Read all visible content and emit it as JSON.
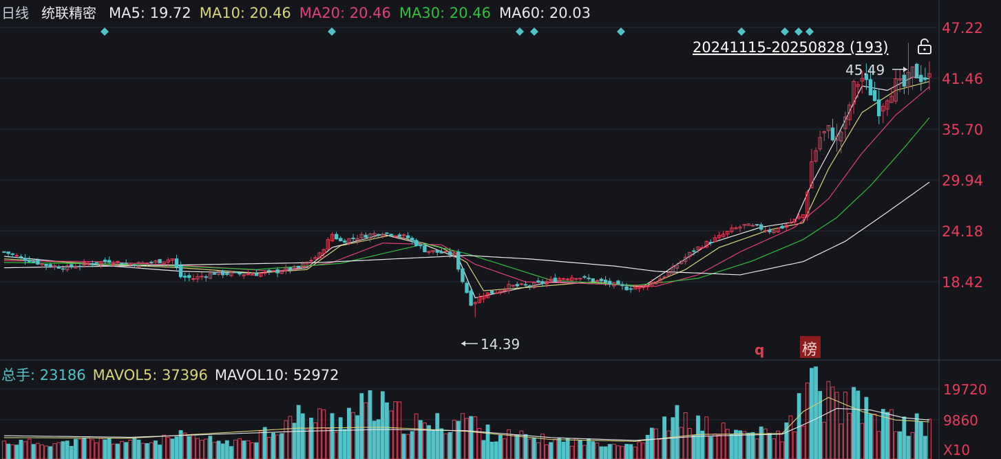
{
  "header": {
    "period": "日线",
    "stock_name": "统联精密",
    "ma": [
      {
        "label": "MA5: 19.72",
        "color": "#e8e8e8"
      },
      {
        "label": "MA10: 20.46",
        "color": "#d8d47a"
      },
      {
        "label": "MA20: 20.46",
        "color": "#e0407a"
      },
      {
        "label": "MA30: 20.46",
        "color": "#2fbf3a"
      },
      {
        "label": "MA60: 20.03",
        "color": "#e8e8e8"
      }
    ]
  },
  "range_label": "20241115-20250828 (193)",
  "volume_header": {
    "items": [
      {
        "label": "总手: 23186",
        "color": "#4fc3c8"
      },
      {
        "label": "MAVOL5: 37396",
        "color": "#d8d47a"
      },
      {
        "label": "MAVOL10: 52972",
        "color": "#e8e8e8"
      }
    ]
  },
  "markers": {
    "q": "q",
    "bang": "榜"
  },
  "colors": {
    "up": "#e0405a",
    "down": "#4fc3c8",
    "background": "#14161c",
    "grid": "#262a33",
    "axis_text": "#e83c5a"
  },
  "chart_data": [
    {
      "type": "candlestick",
      "title": "统联精密 日线",
      "date_range": "20241115-20250828",
      "bar_count": 193,
      "y_ticks": [
        47.22,
        41.46,
        35.7,
        29.94,
        24.18,
        18.42
      ],
      "y_tick_labels": [
        "47.22",
        "41.46",
        "35.70",
        "29.94",
        "24.18",
        "18.42"
      ],
      "ylim": [
        14.0,
        47.22
      ],
      "max_label": "45.49",
      "min_label": "14.39",
      "high": 45.49,
      "low": 14.39,
      "grid": true,
      "close_path": [
        [
          0,
          21.8
        ],
        [
          5,
          21.0
        ],
        [
          10,
          20.3
        ],
        [
          15,
          20.0
        ],
        [
          20,
          20.5
        ],
        [
          25,
          20.8
        ],
        [
          30,
          20.4
        ],
        [
          35,
          20.6
        ],
        [
          40,
          21.0
        ],
        [
          42,
          19.0
        ],
        [
          45,
          18.8
        ],
        [
          50,
          19.4
        ],
        [
          55,
          19.3
        ],
        [
          60,
          19.3
        ],
        [
          65,
          19.6
        ],
        [
          70,
          20.0
        ],
        [
          75,
          21.5
        ],
        [
          78,
          23.8
        ],
        [
          80,
          23.0
        ],
        [
          85,
          23.6
        ],
        [
          90,
          24.0
        ],
        [
          93,
          23.8
        ],
        [
          96,
          23.4
        ],
        [
          100,
          22.0
        ],
        [
          104,
          21.7
        ],
        [
          107,
          21.5
        ],
        [
          109,
          18.5
        ],
        [
          111,
          16.0
        ],
        [
          112,
          16.2
        ],
        [
          114,
          17.0
        ],
        [
          117,
          17.3
        ],
        [
          120,
          17.9
        ],
        [
          125,
          18.0
        ],
        [
          128,
          18.3
        ],
        [
          132,
          18.8
        ],
        [
          136,
          19.0
        ],
        [
          140,
          18.6
        ],
        [
          144,
          18.2
        ],
        [
          148,
          17.7
        ],
        [
          152,
          17.9
        ],
        [
          155,
          18.5
        ],
        [
          158,
          19.4
        ],
        [
          161,
          20.8
        ],
        [
          164,
          22.0
        ],
        [
          167,
          22.8
        ],
        [
          170,
          23.5
        ],
        [
          173,
          24.3
        ],
        [
          176,
          24.8
        ],
        [
          179,
          24.6
        ],
        [
          182,
          24.2
        ],
        [
          185,
          24.6
        ],
        [
          188,
          25.4
        ],
        [
          190,
          26.0
        ],
        [
          192,
          32.0
        ],
        [
          194,
          34.8
        ],
        [
          196,
          35.6
        ],
        [
          198,
          34.5
        ],
        [
          200,
          36.5
        ],
        [
          202,
          40.5
        ],
        [
          204,
          41.5
        ],
        [
          206,
          40.0
        ],
        [
          208,
          38.0
        ],
        [
          210,
          39.6
        ],
        [
          212,
          40.8
        ],
        [
          214,
          40.5
        ],
        [
          216,
          42.2
        ],
        [
          218,
          41.6
        ],
        [
          220,
          41.5
        ]
      ],
      "series": [
        {
          "name": "MA5",
          "values": [
            [
              0,
              21.3
            ],
            [
              20,
              20.4
            ],
            [
              42,
              19.6
            ],
            [
              60,
              19.4
            ],
            [
              72,
              20.0
            ],
            [
              78,
              22.3
            ],
            [
              90,
              23.8
            ],
            [
              100,
              22.6
            ],
            [
              108,
              21.1
            ],
            [
              112,
              16.6
            ],
            [
              118,
              17.2
            ],
            [
              130,
              18.4
            ],
            [
              145,
              18.1
            ],
            [
              152,
              17.9
            ],
            [
              160,
              20.4
            ],
            [
              168,
              22.8
            ],
            [
              180,
              24.6
            ],
            [
              188,
              25.2
            ],
            [
              192,
              29.5
            ],
            [
              198,
              34.8
            ],
            [
              204,
              40.6
            ],
            [
              210,
              40.1
            ],
            [
              216,
              41.6
            ],
            [
              220,
              41.4
            ]
          ]
        },
        {
          "name": "MA10",
          "values": [
            [
              0,
              21.0
            ],
            [
              20,
              20.5
            ],
            [
              42,
              20.0
            ],
            [
              60,
              19.4
            ],
            [
              72,
              19.8
            ],
            [
              80,
              22.5
            ],
            [
              92,
              23.7
            ],
            [
              104,
              22.3
            ],
            [
              110,
              20.6
            ],
            [
              114,
              17.4
            ],
            [
              125,
              17.8
            ],
            [
              140,
              18.4
            ],
            [
              152,
              17.8
            ],
            [
              162,
              19.8
            ],
            [
              170,
              22.3
            ],
            [
              182,
              24.3
            ],
            [
              190,
              25.1
            ],
            [
              196,
              31.2
            ],
            [
              204,
              37.6
            ],
            [
              212,
              40.1
            ],
            [
              220,
              41.1
            ]
          ]
        },
        {
          "name": "MA20",
          "values": [
            [
              0,
              20.8
            ],
            [
              22,
              20.7
            ],
            [
              45,
              20.2
            ],
            [
              65,
              19.6
            ],
            [
              78,
              20.6
            ],
            [
              90,
              22.8
            ],
            [
              104,
              22.6
            ],
            [
              112,
              20.4
            ],
            [
              124,
              18.4
            ],
            [
              140,
              18.2
            ],
            [
              155,
              17.9
            ],
            [
              165,
              19.2
            ],
            [
              175,
              21.8
            ],
            [
              188,
              24.6
            ],
            [
              196,
              27.8
            ],
            [
              204,
              33.0
            ],
            [
              212,
              37.3
            ],
            [
              220,
              40.5
            ]
          ]
        },
        {
          "name": "MA30",
          "values": [
            [
              0,
              20.6
            ],
            [
              30,
              20.4
            ],
            [
              60,
              19.8
            ],
            [
              80,
              20.5
            ],
            [
              100,
              22.7
            ],
            [
              110,
              21.6
            ],
            [
              130,
              18.6
            ],
            [
              150,
              18.0
            ],
            [
              165,
              18.8
            ],
            [
              178,
              20.8
            ],
            [
              190,
              23.2
            ],
            [
              198,
              25.7
            ],
            [
              206,
              29.3
            ],
            [
              214,
              33.6
            ],
            [
              220,
              37.0
            ]
          ]
        },
        {
          "name": "MA60",
          "values": [
            [
              0,
              20.0
            ],
            [
              40,
              20.3
            ],
            [
              75,
              20.6
            ],
            [
              110,
              21.4
            ],
            [
              125,
              21.0
            ],
            [
              145,
              20.2
            ],
            [
              155,
              19.6
            ],
            [
              175,
              19.2
            ],
            [
              190,
              20.7
            ],
            [
              200,
              23.0
            ],
            [
              210,
              26.3
            ],
            [
              220,
              29.7
            ]
          ]
        }
      ]
    },
    {
      "type": "bar",
      "title": "总手",
      "y_ticks": [
        19720,
        9860
      ],
      "y_tick_labels": [
        "19720",
        "9860"
      ],
      "unit_label": "X10",
      "ylim": [
        0,
        24000
      ],
      "values": [
        {
          "x": 0,
          "v": 3000
        },
        {
          "x": 15,
          "v": 2600
        },
        {
          "x": 20,
          "v": 3600
        },
        {
          "x": 35,
          "v": 3000
        },
        {
          "x": 42,
          "v": 4800
        },
        {
          "x": 55,
          "v": 2600
        },
        {
          "x": 70,
          "v": 11500
        },
        {
          "x": 78,
          "v": 11000
        },
        {
          "x": 88,
          "v": 15500
        },
        {
          "x": 100,
          "v": 8000
        },
        {
          "x": 110,
          "v": 12000
        },
        {
          "x": 114,
          "v": 6400
        },
        {
          "x": 130,
          "v": 3600
        },
        {
          "x": 150,
          "v": 2200
        },
        {
          "x": 160,
          "v": 11000
        },
        {
          "x": 170,
          "v": 7000
        },
        {
          "x": 185,
          "v": 5200
        },
        {
          "x": 192,
          "v": 21500
        },
        {
          "x": 198,
          "v": 16500
        },
        {
          "x": 204,
          "v": 14500
        },
        {
          "x": 212,
          "v": 9500
        },
        {
          "x": 220,
          "v": 8500
        }
      ],
      "series": [
        {
          "name": "MAVOL5",
          "values": [
            [
              0,
              4200
            ],
            [
              30,
              4000
            ],
            [
              70,
              7200
            ],
            [
              90,
              7500
            ],
            [
              110,
              6200
            ],
            [
              130,
              3600
            ],
            [
              150,
              3000
            ],
            [
              165,
              5200
            ],
            [
              185,
              5500
            ],
            [
              190,
              12500
            ],
            [
              196,
              17000
            ],
            [
              204,
              12500
            ],
            [
              212,
              9800
            ],
            [
              220,
              9200
            ]
          ]
        },
        {
          "name": "MAVOL10",
          "values": [
            [
              0,
              4800
            ],
            [
              30,
              4300
            ],
            [
              70,
              6200
            ],
            [
              90,
              6800
            ],
            [
              110,
              6400
            ],
            [
              130,
              4200
            ],
            [
              150,
              3300
            ],
            [
              165,
              4600
            ],
            [
              185,
              5300
            ],
            [
              192,
              9500
            ],
            [
              198,
              13500
            ],
            [
              206,
              13000
            ],
            [
              214,
              10500
            ],
            [
              220,
              9800
            ]
          ]
        }
      ]
    }
  ]
}
